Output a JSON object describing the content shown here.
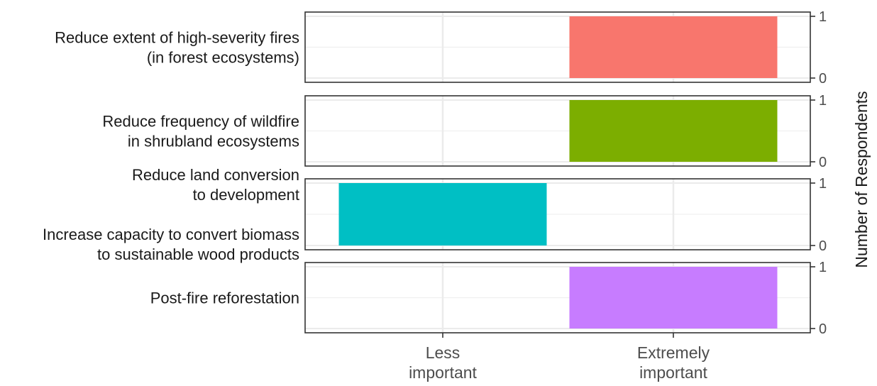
{
  "chart_data": {
    "type": "bar",
    "layout": "faceted",
    "categories": [
      "Less important",
      "Extremely important"
    ],
    "x_tick_labels": [
      [
        "Less",
        "important"
      ],
      [
        "Extremely",
        "important"
      ]
    ],
    "ylabel": "Number of Respondents",
    "ylim": [
      0,
      1
    ],
    "y_ticks": [
      0,
      1
    ],
    "grid": true,
    "facets": [
      {
        "name": "Reduce extent of high-severity fires (in forest ecosystems)",
        "label_lines": [
          "Reduce extent of high-severity fires",
          "(in forest ecosystems)"
        ],
        "values": [
          0,
          1
        ],
        "color": "#F8766D"
      },
      {
        "name": "Reduce frequency of wildfire in shrubland ecosystems",
        "label_lines": [
          "Reduce frequency of wildfire",
          "in shrubland ecosystems"
        ],
        "values": [
          0,
          1
        ],
        "color": "#7CAE00"
      },
      {
        "name": "Reduce land conversion to development / Increase capacity to convert biomass to sustainable wood products",
        "label_lines": [
          "Reduce land conversion",
          "to development",
          "",
          "Increase capacity to convert biomass",
          "to sustainable wood products"
        ],
        "values": [
          1,
          0
        ],
        "color": "#00BFC4"
      },
      {
        "name": "Post-fire reforestation",
        "label_lines": [
          "Post-fire reforestation"
        ],
        "values": [
          0,
          1
        ],
        "color": "#C77CFF"
      }
    ]
  }
}
